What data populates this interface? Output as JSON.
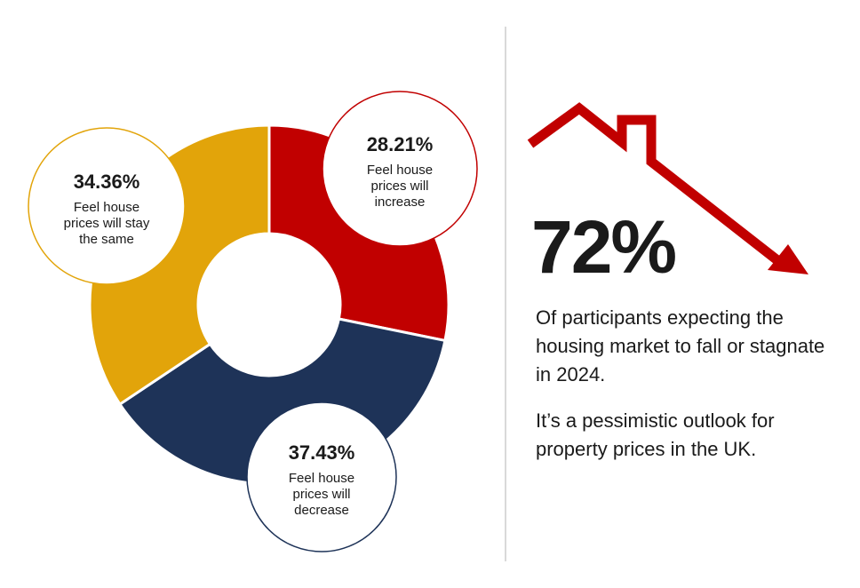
{
  "chart_data": {
    "type": "donut",
    "slices": [
      {
        "label": "Feel house prices will increase",
        "value": 28.21,
        "value_label": "28.21%",
        "text_lines": [
          "Feel house",
          "prices will",
          "increase"
        ],
        "color": "#c10000"
      },
      {
        "label": "Feel house prices will decrease",
        "value": 37.43,
        "value_label": "37.43%",
        "text_lines": [
          "Feel house",
          "prices will",
          "decrease"
        ],
        "color": "#1e3358"
      },
      {
        "label": "Feel house prices will stay the same",
        "value": 34.36,
        "value_label": "34.36%",
        "text_lines": [
          "Feel house",
          "prices will stay",
          "the same"
        ],
        "color": "#e2a40a"
      }
    ]
  },
  "headline": {
    "value": "72%",
    "description": "Of participants expecting the housing market to fall or stagnate in 2024.",
    "note": "It’s a pessimistic outlook for property prices in the UK."
  },
  "colors": {
    "increase": "#c10000",
    "decrease": "#1e3358",
    "same": "#e2a40a",
    "arrow": "#c10000",
    "divider": "#d9d9d9"
  },
  "icons": {
    "trend": "house-roof-down-arrow-icon"
  }
}
